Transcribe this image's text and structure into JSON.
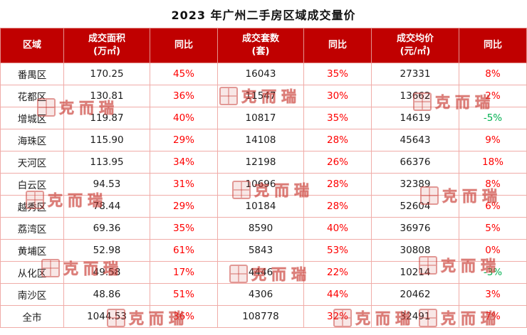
{
  "page": {
    "title": "2023 年广州二手房区域成交量价",
    "watermark_text": "克而瑞"
  },
  "chart_data": {
    "type": "table",
    "title": "2023 年广州二手房区域成交量价",
    "columns": [
      [
        "区域"
      ],
      [
        "成交面积",
        "(万㎡)"
      ],
      [
        "同比"
      ],
      [
        "成交套数",
        "(套)"
      ],
      [
        "同比"
      ],
      [
        "成交均价",
        "(元/㎡)"
      ],
      [
        "同比"
      ]
    ],
    "rows": [
      {
        "region": "番禺区",
        "area": "170.25",
        "area_yoy": "45%",
        "units": "16043",
        "units_yoy": "35%",
        "price": "27331",
        "price_yoy": "8%"
      },
      {
        "region": "花都区",
        "area": "130.81",
        "area_yoy": "36%",
        "units": "11547",
        "units_yoy": "30%",
        "price": "13662",
        "price_yoy": "2%"
      },
      {
        "region": "增城区",
        "area": "119.87",
        "area_yoy": "40%",
        "units": "10817",
        "units_yoy": "35%",
        "price": "14619",
        "price_yoy": "-5%"
      },
      {
        "region": "海珠区",
        "area": "115.90",
        "area_yoy": "29%",
        "units": "14108",
        "units_yoy": "28%",
        "price": "45643",
        "price_yoy": "9%"
      },
      {
        "region": "天河区",
        "area": "113.95",
        "area_yoy": "34%",
        "units": "12198",
        "units_yoy": "26%",
        "price": "66376",
        "price_yoy": "18%"
      },
      {
        "region": "白云区",
        "area": "94.53",
        "area_yoy": "31%",
        "units": "10696",
        "units_yoy": "28%",
        "price": "32389",
        "price_yoy": "8%"
      },
      {
        "region": "越秀区",
        "area": "78.44",
        "area_yoy": "29%",
        "units": "10184",
        "units_yoy": "28%",
        "price": "52604",
        "price_yoy": "6%"
      },
      {
        "region": "荔湾区",
        "area": "69.36",
        "area_yoy": "35%",
        "units": "8590",
        "units_yoy": "40%",
        "price": "36976",
        "price_yoy": "5%"
      },
      {
        "region": "黄埔区",
        "area": "52.98",
        "area_yoy": "61%",
        "units": "5843",
        "units_yoy": "53%",
        "price": "30808",
        "price_yoy": "0%"
      },
      {
        "region": "从化区",
        "area": "49.58",
        "area_yoy": "17%",
        "units": "4446",
        "units_yoy": "22%",
        "price": "10214",
        "price_yoy": "-3%"
      },
      {
        "region": "南沙区",
        "area": "48.86",
        "area_yoy": "51%",
        "units": "4306",
        "units_yoy": "44%",
        "price": "20462",
        "price_yoy": "3%"
      },
      {
        "region": "全市",
        "area": "1044.53",
        "area_yoy": "36%",
        "units": "108778",
        "units_yoy": "32%",
        "price": "32491",
        "price_yoy": "7%"
      }
    ],
    "colors": {
      "header_bg": "#c00000",
      "header_text": "#ffffff",
      "yoy_positive": "#fe0000",
      "yoy_negative": "#00b050",
      "grid_border": "#f0aca8",
      "watermark": "#c73932"
    }
  }
}
